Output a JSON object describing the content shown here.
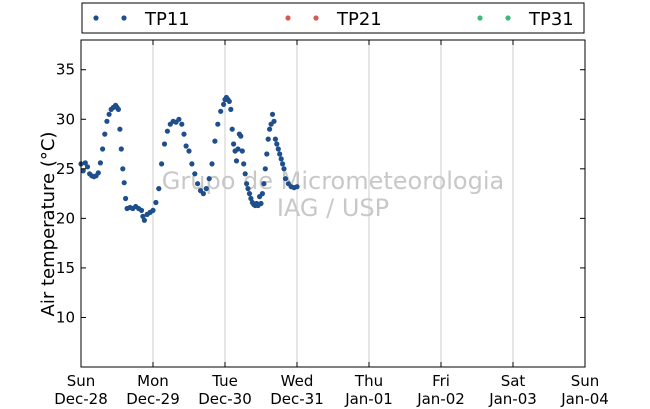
{
  "chart_data": {
    "type": "scatter",
    "ylabel": "Air temperature (°C)",
    "ylim": [
      5,
      38
    ],
    "xlim": [
      0,
      7
    ],
    "yticks": [
      10,
      15,
      20,
      25,
      30,
      35
    ],
    "xticks": [
      {
        "pos": 0,
        "day": "Sun",
        "date": "Dec-28"
      },
      {
        "pos": 1,
        "day": "Mon",
        "date": "Dec-29"
      },
      {
        "pos": 2,
        "day": "Tue",
        "date": "Dec-30"
      },
      {
        "pos": 3,
        "day": "Wed",
        "date": "Dec-31"
      },
      {
        "pos": 4,
        "day": "Thu",
        "date": "Jan-01"
      },
      {
        "pos": 5,
        "day": "Fri",
        "date": "Jan-02"
      },
      {
        "pos": 6,
        "day": "Sat",
        "date": "Jan-03"
      },
      {
        "pos": 7,
        "day": "Sun",
        "date": "Jan-04"
      }
    ],
    "grid": "vertical",
    "legend_position": "top",
    "watermark": [
      "Grupo de Micrometeorologia",
      "IAG / USP"
    ],
    "series": [
      {
        "name": "TP11",
        "color": "#1f4e8c",
        "points": [
          [
            0.0,
            25.5
          ],
          [
            0.03,
            24.8
          ],
          [
            0.06,
            25.6
          ],
          [
            0.09,
            25.2
          ],
          [
            0.12,
            24.5
          ],
          [
            0.15,
            24.3
          ],
          [
            0.18,
            24.2
          ],
          [
            0.21,
            24.3
          ],
          [
            0.24,
            24.6
          ],
          [
            0.27,
            25.6
          ],
          [
            0.3,
            27.0
          ],
          [
            0.33,
            28.5
          ],
          [
            0.36,
            29.8
          ],
          [
            0.39,
            30.5
          ],
          [
            0.42,
            31.0
          ],
          [
            0.45,
            31.2
          ],
          [
            0.48,
            31.4
          ],
          [
            0.5,
            31.2
          ],
          [
            0.52,
            31.0
          ],
          [
            0.54,
            29.0
          ],
          [
            0.56,
            27.0
          ],
          [
            0.58,
            25.0
          ],
          [
            0.6,
            23.6
          ],
          [
            0.62,
            22.0
          ],
          [
            0.64,
            21.0
          ],
          [
            0.68,
            21.1
          ],
          [
            0.72,
            21.0
          ],
          [
            0.76,
            21.2
          ],
          [
            0.8,
            21.0
          ],
          [
            0.84,
            20.8
          ],
          [
            0.86,
            20.2
          ],
          [
            0.88,
            19.8
          ],
          [
            0.92,
            20.4
          ],
          [
            0.96,
            20.6
          ],
          [
            1.0,
            20.8
          ],
          [
            1.04,
            21.6
          ],
          [
            1.08,
            23.0
          ],
          [
            1.12,
            25.5
          ],
          [
            1.16,
            27.5
          ],
          [
            1.2,
            28.8
          ],
          [
            1.24,
            29.5
          ],
          [
            1.28,
            29.8
          ],
          [
            1.32,
            29.7
          ],
          [
            1.36,
            30.0
          ],
          [
            1.4,
            29.5
          ],
          [
            1.43,
            28.5
          ],
          [
            1.46,
            27.3
          ],
          [
            1.5,
            26.8
          ],
          [
            1.54,
            25.5
          ],
          [
            1.58,
            24.5
          ],
          [
            1.62,
            23.5
          ],
          [
            1.66,
            22.8
          ],
          [
            1.7,
            22.5
          ],
          [
            1.74,
            23.0
          ],
          [
            1.78,
            24.0
          ],
          [
            1.82,
            25.5
          ],
          [
            1.86,
            27.8
          ],
          [
            1.9,
            29.5
          ],
          [
            1.94,
            30.8
          ],
          [
            1.98,
            31.5
          ],
          [
            2.0,
            32.0
          ],
          [
            2.02,
            32.2
          ],
          [
            2.04,
            32.0
          ],
          [
            2.06,
            31.8
          ],
          [
            2.08,
            31.0
          ],
          [
            2.1,
            29.0
          ],
          [
            2.12,
            27.5
          ],
          [
            2.14,
            26.8
          ],
          [
            2.16,
            25.8
          ],
          [
            2.18,
            27.0
          ],
          [
            2.2,
            28.5
          ],
          [
            2.22,
            28.3
          ],
          [
            2.24,
            26.8
          ],
          [
            2.26,
            25.5
          ],
          [
            2.28,
            24.5
          ],
          [
            2.3,
            23.5
          ],
          [
            2.32,
            23.0
          ],
          [
            2.34,
            22.5
          ],
          [
            2.36,
            22.0
          ],
          [
            2.38,
            21.6
          ],
          [
            2.4,
            21.4
          ],
          [
            2.42,
            21.3
          ],
          [
            2.44,
            21.5
          ],
          [
            2.46,
            21.3
          ],
          [
            2.48,
            22.2
          ],
          [
            2.5,
            21.5
          ],
          [
            2.52,
            22.5
          ],
          [
            2.54,
            23.5
          ],
          [
            2.56,
            25.0
          ],
          [
            2.58,
            26.5
          ],
          [
            2.6,
            28.0
          ],
          [
            2.62,
            29.0
          ],
          [
            2.64,
            29.5
          ],
          [
            2.66,
            30.5
          ],
          [
            2.68,
            29.8
          ],
          [
            2.7,
            28.0
          ],
          [
            2.72,
            27.5
          ],
          [
            2.74,
            27.0
          ],
          [
            2.76,
            26.5
          ],
          [
            2.78,
            26.0
          ],
          [
            2.8,
            25.5
          ],
          [
            2.82,
            25.0
          ],
          [
            2.84,
            24.0
          ],
          [
            2.88,
            23.5
          ],
          [
            2.92,
            23.2
          ],
          [
            2.96,
            23.1
          ],
          [
            3.0,
            23.2
          ]
        ]
      },
      {
        "name": "TP21",
        "color": "#d45a52",
        "points": []
      },
      {
        "name": "TP31",
        "color": "#3dba7a",
        "points": []
      }
    ]
  }
}
